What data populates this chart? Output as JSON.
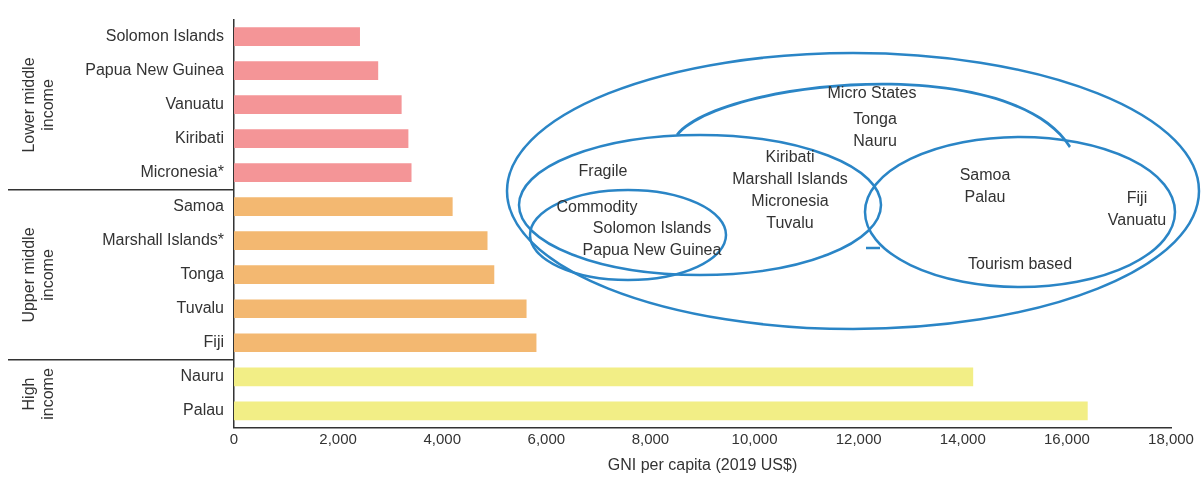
{
  "chart_data": {
    "type": "bar",
    "orientation": "horizontal",
    "xlabel": "GNI per capita (2019 US$)",
    "categories": [
      "Solomon Islands",
      "Papua New Guinea",
      "Vanuatu",
      "Kiribati",
      "Micronesia*",
      "Samoa",
      "Marshall Islands*",
      "Tonga",
      "Tuvalu",
      "Fiji",
      "Nauru",
      "Palau"
    ],
    "values": [
      2420,
      2770,
      3220,
      3350,
      3410,
      4200,
      4870,
      5000,
      5620,
      5810,
      14200,
      16400
    ],
    "colors": [
      "#f49597",
      "#f49597",
      "#f49597",
      "#f49597",
      "#f49597",
      "#f3b871",
      "#f3b871",
      "#f3b871",
      "#f3b871",
      "#f3b871",
      "#f2ee86",
      "#f2ee86"
    ],
    "xlim": [
      0,
      18000
    ],
    "xticks": [
      {
        "value": 0,
        "label": "0"
      },
      {
        "value": 2000,
        "label": "2,000"
      },
      {
        "value": 4000,
        "label": "4,000"
      },
      {
        "value": 6000,
        "label": "6,000"
      },
      {
        "value": 8000,
        "label": "8,000"
      },
      {
        "value": 10000,
        "label": "10,000"
      },
      {
        "value": 12000,
        "label": "12,000"
      },
      {
        "value": 14000,
        "label": "14,000"
      },
      {
        "value": 16000,
        "label": "16,000"
      },
      {
        "value": 18000,
        "label": "18,000"
      }
    ],
    "grid": false,
    "legend": false,
    "annotations": [
      "Lower middle\nincome",
      "Upper middle\nincome",
      "High\nincome",
      "Micro States",
      "Tonga\nNauru",
      "Fragile",
      "Kiribati\nMarshall Islands\nMicronesia\nTuvalu",
      "Commodity",
      "Solomon Islands\nPapua New Guinea",
      "Samoa\nPalau",
      "Fiji\nVanuatu",
      "Tourism based"
    ]
  }
}
